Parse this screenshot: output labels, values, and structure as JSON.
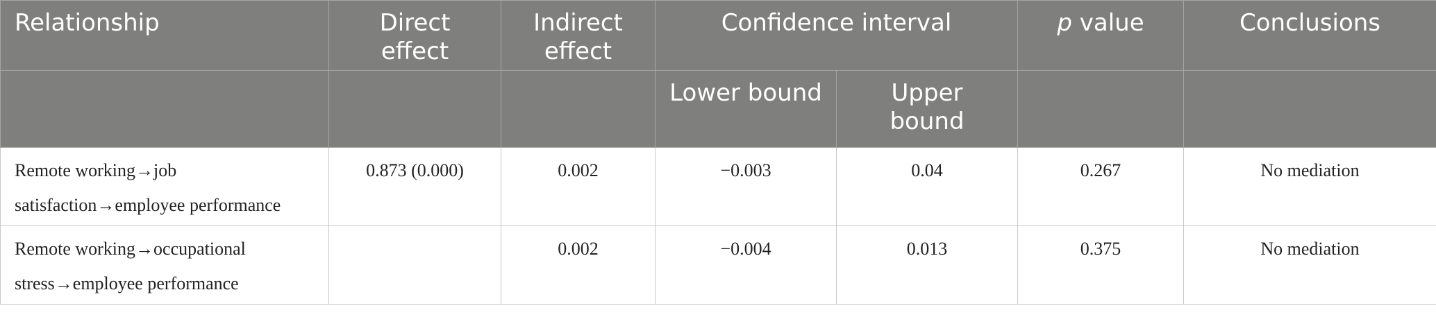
{
  "table": {
    "headers": {
      "relationship": "Relationship",
      "direct_effect": "Direct effect",
      "indirect_effect": "Indirect effect",
      "confidence_interval": "Confidence interval",
      "p_value": {
        "italic": "p",
        "text": "value"
      },
      "conclusions": "Conclusions"
    },
    "subheaders": {
      "lower_bound": "Lower bound",
      "upper_bound": "Upper bound"
    },
    "rows": [
      {
        "relationship": "Remote working→job satisfaction→employee performance",
        "direct_effect": "0.873 (0.000)",
        "indirect_effect": "0.002",
        "lower_bound": "−0.003",
        "upper_bound": "0.04",
        "p_value": "0.267",
        "conclusions": "No mediation"
      },
      {
        "relationship": "Remote working→occupational stress→employee performance",
        "indirect_effect": "0.002",
        "lower_bound": "−0.004",
        "upper_bound": "0.013",
        "p_value": "0.375",
        "conclusions": "No mediation"
      }
    ]
  }
}
